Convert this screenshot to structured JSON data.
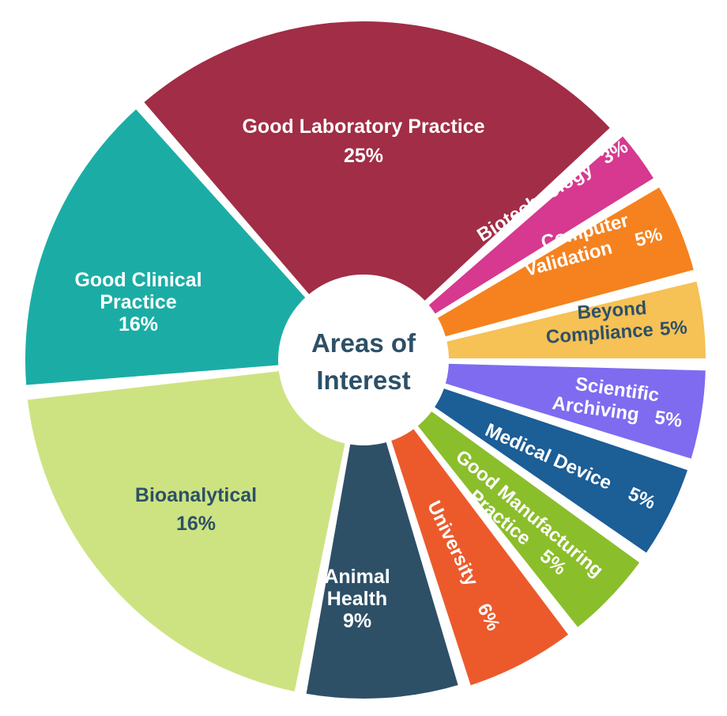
{
  "chart_data": {
    "type": "pie",
    "title": "Areas of Interest",
    "center_label_lines": [
      "Areas of",
      "Interest"
    ],
    "slices": [
      {
        "key": "glp",
        "label_lines": [
          "Good Laboratory Practice"
        ],
        "value_label": "25%",
        "value": 25,
        "color": "#A12D46"
      },
      {
        "key": "biotech",
        "label_lines": [
          "Biotechnology"
        ],
        "value_label": "3%",
        "value": 3,
        "color": "#D6398F"
      },
      {
        "key": "compval",
        "label_lines": [
          "Computer",
          "Validation"
        ],
        "value_label": "5%",
        "value": 5,
        "color": "#F5821F"
      },
      {
        "key": "beyond",
        "label_lines": [
          "Beyond",
          "Compliance"
        ],
        "value_label": "5%",
        "value": 5,
        "color": "#F6C155"
      },
      {
        "key": "sciarch",
        "label_lines": [
          "Scientific",
          "Archiving"
        ],
        "value_label": "5%",
        "value": 5,
        "color": "#7E6BF0"
      },
      {
        "key": "meddev",
        "label_lines": [
          "Medical Device"
        ],
        "value_label": "5%",
        "value": 5,
        "color": "#1C5E96"
      },
      {
        "key": "gmp",
        "label_lines": [
          "Good Manufacturing",
          "Practice"
        ],
        "value_label": "5%",
        "value": 5,
        "color": "#8BBE2B"
      },
      {
        "key": "univ",
        "label_lines": [
          "University"
        ],
        "value_label": "6%",
        "value": 6,
        "color": "#EC5A2C"
      },
      {
        "key": "animal",
        "label_lines": [
          "Animal",
          "Health"
        ],
        "value_label": "9%",
        "value": 9,
        "color": "#2D5067"
      },
      {
        "key": "bioanal",
        "label_lines": [
          "Bioanalytical"
        ],
        "value_label": "16%",
        "value": 16,
        "color": "#CDE382"
      },
      {
        "key": "gcp",
        "label_lines": [
          "Good Clinical",
          "Practice"
        ],
        "value_label": "16%",
        "value": 16,
        "color": "#1BADA5"
      }
    ],
    "colors": {
      "center_fill": "#FFFFFF",
      "center_text": "#2D5067",
      "separator": "#FFFFFF",
      "label_dark": "#2D5067",
      "label_light": "#FFFFFF"
    }
  }
}
